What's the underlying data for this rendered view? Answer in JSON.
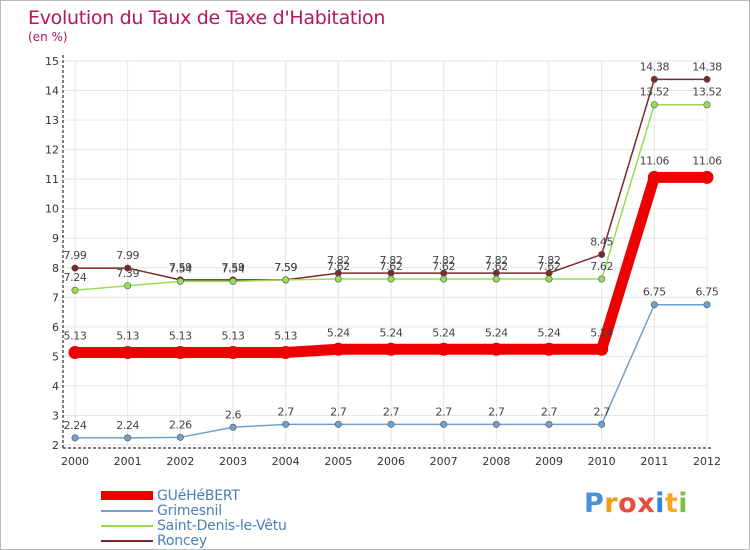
{
  "header": {
    "title": "Evolution du Taux de Taxe d'Habitation",
    "subtitle": "(en %)"
  },
  "logo": {
    "letters": [
      "P",
      "r",
      "o",
      "x",
      "i",
      "t",
      "i"
    ],
    "colors": [
      "#4a90d9",
      "#f39c12",
      "#e74c3c",
      "#e74c3c",
      "#2e86de",
      "#f5a623",
      "#7bc043"
    ]
  },
  "chart_data": {
    "type": "line",
    "title": "Evolution du Taux de Taxe d'Habitation",
    "subtitle": "(en %)",
    "xlabel": "",
    "ylabel": "",
    "categories": [
      "2000",
      "2001",
      "2002",
      "2003",
      "2004",
      "2005",
      "2006",
      "2007",
      "2008",
      "2009",
      "2010",
      "2011",
      "2012"
    ],
    "yticks": [
      "2",
      "3",
      "4",
      "5",
      "6",
      "7",
      "8",
      "9",
      "10",
      "11",
      "12",
      "13",
      "14",
      "15"
    ],
    "ylim": [
      2,
      15
    ],
    "grid": true,
    "legend_position": "bottom-left",
    "series": [
      {
        "name": "GUéHéBERT",
        "color": "#ee0000",
        "values": [
          5.13,
          5.13,
          5.13,
          5.13,
          5.13,
          5.24,
          5.24,
          5.24,
          5.24,
          5.24,
          5.24,
          11.06,
          11.06
        ],
        "labels": [
          "5.13",
          "5.13",
          "5.13",
          "5.13",
          "5.13",
          "5.24",
          "5.24",
          "5.24",
          "5.24",
          "5.24",
          "5.24",
          "11.06",
          "11.06"
        ]
      },
      {
        "name": "Grimesnil",
        "color": "#6fa0cf",
        "values": [
          2.24,
          2.24,
          2.26,
          2.6,
          2.7,
          2.7,
          2.7,
          2.7,
          2.7,
          2.7,
          2.7,
          6.75,
          6.75
        ],
        "labels": [
          "2.24",
          "2.24",
          "2.26",
          "2.6",
          "2.7",
          "2.7",
          "2.7",
          "2.7",
          "2.7",
          "2.7",
          "2.7",
          "6.75",
          "6.75"
        ]
      },
      {
        "name": "Saint-Denis-le-Vêtu",
        "color": "#99dd55",
        "values": [
          7.24,
          7.39,
          7.54,
          7.54,
          7.59,
          7.62,
          7.62,
          7.62,
          7.62,
          7.62,
          7.62,
          13.52,
          13.52
        ],
        "labels": [
          "7.24",
          "7.39",
          "7.54",
          "7.54",
          "7.59",
          "7.62",
          "7.62",
          "7.62",
          "7.62",
          "7.62",
          "7.62",
          "13.52",
          "13.52"
        ]
      },
      {
        "name": "Roncey",
        "color": "#7a2a2a",
        "values": [
          7.99,
          7.99,
          7.59,
          7.59,
          7.59,
          7.82,
          7.82,
          7.82,
          7.82,
          7.82,
          8.45,
          14.38,
          14.38
        ],
        "labels": [
          "7.99",
          "7.99",
          "7.59",
          "7.59",
          "7.59",
          "7.82",
          "7.82",
          "7.82",
          "7.82",
          "7.82",
          "8.45",
          "14.38",
          "14.38"
        ]
      }
    ]
  }
}
